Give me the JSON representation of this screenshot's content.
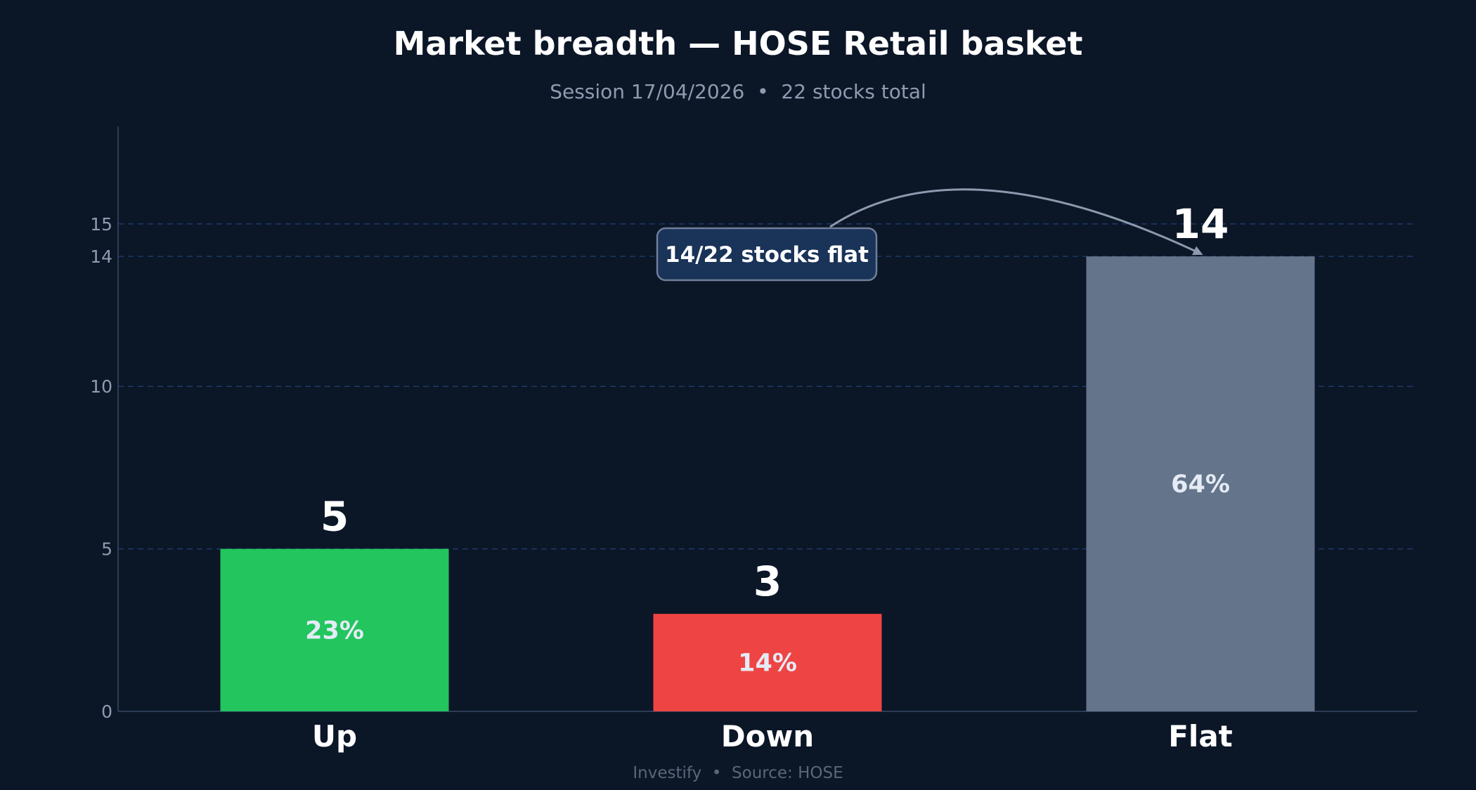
{
  "chart_data": {
    "type": "bar",
    "title": "Market breadth — HOSE Retail basket",
    "subtitle": "Session 17/04/2026  •  22 stocks total",
    "xlabel": "",
    "ylabel": "",
    "categories": [
      "Up",
      "Down",
      "Flat"
    ],
    "values": [
      5,
      3,
      14
    ],
    "percent_labels": [
      "23%",
      "14%",
      "64%"
    ],
    "colors": [
      "#22c55e",
      "#ef4444",
      "#64748b"
    ],
    "ylim": [
      0,
      18
    ],
    "yticks": [
      0,
      5,
      10,
      14,
      15
    ],
    "grid": true,
    "annotation": {
      "text": "14/22 stocks flat",
      "points_to": "Flat"
    },
    "footer": "Investify  •  Source: HOSE"
  }
}
